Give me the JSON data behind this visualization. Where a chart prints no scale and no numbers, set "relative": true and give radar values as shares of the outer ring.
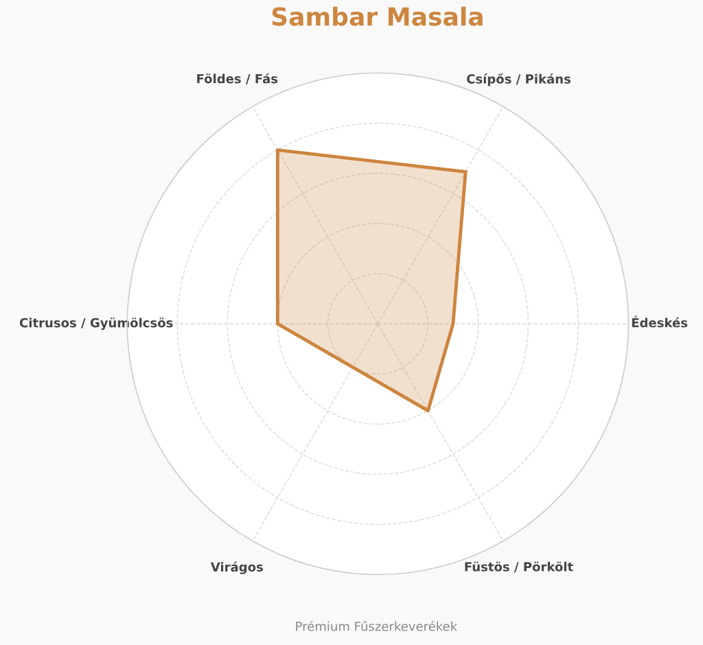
{
  "chart_data": {
    "type": "radar",
    "title": "Sambar Masala",
    "relative": true,
    "grid": true,
    "marker": "none",
    "line_style": "solid",
    "categories": [
      "Csípős / Pikáns",
      "Édeskés",
      "Füstös / Pörkölt",
      "Virágos",
      "Citrusos / Gyümölcsös",
      "Földes / Fás"
    ],
    "series": [
      {
        "color": "#cd853f",
        "values": [
          0.7,
          0.3,
          0.4,
          0.2,
          0.4,
          0.8
        ]
      }
    ],
    "annotations": [
      "Prémium Fűszerkeverékek"
    ]
  }
}
